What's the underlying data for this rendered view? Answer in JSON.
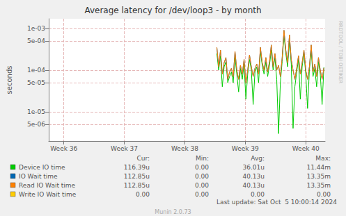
{
  "chart_data": {
    "type": "line",
    "title": "Average latency for /dev/loop3 - by month",
    "ylabel": "seconds",
    "log": "y",
    "grid": true,
    "legend": "bottom",
    "xlim": [
      35.75,
      40.32
    ],
    "xticks": [
      {
        "value": 36,
        "label": "Week 36"
      },
      {
        "value": 37,
        "label": "Week 37"
      },
      {
        "value": 38,
        "label": "Week 38"
      },
      {
        "value": 39,
        "label": "Week 39"
      },
      {
        "value": 40,
        "label": "Week 40"
      }
    ],
    "ylim": [
      2e-06,
      0.0017
    ],
    "yticks": [
      {
        "value": 0.001,
        "label": "1e-03"
      },
      {
        "value": 0.0005,
        "label": "5e-04"
      },
      {
        "value": 0.0001,
        "label": "1e-04"
      },
      {
        "value": 5e-05,
        "label": "5e-05"
      },
      {
        "value": 1e-05,
        "label": "1e-05"
      },
      {
        "value": 5e-06,
        "label": "5e-06"
      }
    ],
    "x": [
      38.53,
      38.56,
      38.59,
      38.62,
      38.65,
      38.68,
      38.71,
      38.74,
      38.77,
      38.8,
      38.83,
      38.86,
      38.89,
      38.92,
      38.95,
      38.98,
      39.01,
      39.04,
      39.07,
      39.1,
      39.13,
      39.16,
      39.19,
      39.22,
      39.25,
      39.28,
      39.31,
      39.34,
      39.37,
      39.4,
      39.43,
      39.46,
      39.49,
      39.52,
      39.55,
      39.58,
      39.61,
      39.64,
      39.67,
      39.7,
      39.73,
      39.76,
      39.79,
      39.82,
      39.85,
      39.88,
      39.91,
      39.94,
      39.97,
      40.0,
      40.03,
      40.06,
      40.09,
      40.12,
      40.15,
      40.18,
      40.21,
      40.24,
      40.27,
      40.3
    ],
    "stat_labels": [
      "Cur:",
      "Min:",
      "Avg:",
      "Max:"
    ],
    "series": [
      {
        "name": "Device IO time",
        "color": "#00cc00",
        "stats": [
          "116.39u",
          "0.00",
          "36.01u",
          "11.44m"
        ],
        "values": [
          0.00025,
          0.0001,
          0.00022,
          4e-05,
          0.00012,
          0.00016,
          5e-05,
          7e-05,
          9e-05,
          5e-05,
          0.0002,
          8e-05,
          3e-05,
          0.00011,
          6e-05,
          0.00014,
          2e-05,
          8e-05,
          0.00018,
          0.0001,
          1.5e-05,
          9e-05,
          0.00012,
          5e-05,
          0.00028,
          0.00013,
          8e-05,
          0.00016,
          7e-05,
          0.00013,
          0.0003,
          0.0001,
          0.0002,
          6e-05,
          3e-06,
          5e-05,
          0.00016,
          0.0007,
          0.00025,
          0.00012,
          0.0005,
          0.00014,
          4e-06,
          4e-05,
          9e-05,
          0.00018,
          2e-05,
          0.00012,
          0.00025,
          8e-05,
          1.2e-05,
          0.0001,
          0.0003,
          7e-05,
          0.00011,
          4e-05,
          0.00016,
          8e-05,
          1.5e-05,
          0.00011639
        ]
      },
      {
        "name": "IO Wait time",
        "color": "#0066b3",
        "stats": [
          "112.85u",
          "0.00",
          "40.13u",
          "13.35m"
        ],
        "values": [
          0.00035,
          0.00012,
          0.0003,
          8e-05,
          0.00015,
          0.0002,
          6e-05,
          9e-05,
          0.00011,
          7e-05,
          0.00028,
          0.0001,
          6e-05,
          0.00013,
          8e-05,
          0.00018,
          5e-05,
          0.0001,
          0.00023,
          0.00012,
          7e-05,
          0.00011,
          0.00014,
          8e-05,
          0.00035,
          0.00015,
          0.0001,
          0.0002,
          9e-05,
          0.00016,
          0.0004,
          0.00012,
          0.00025,
          0.0001,
          0.00013,
          7e-05,
          0.0002,
          0.0009,
          0.0003,
          0.00015,
          0.0007,
          0.00018,
          0.0001,
          6e-05,
          0.00011,
          0.00022,
          8e-05,
          0.00015,
          0.0003,
          0.0001,
          6e-05,
          0.00012,
          0.0004,
          9e-05,
          0.00014,
          7e-05,
          0.0002,
          0.0001,
          6e-05,
          0.00011285
        ]
      },
      {
        "name": "Read IO Wait time",
        "color": "#ff8000",
        "stats": [
          "112.85u",
          "0.00",
          "40.13u",
          "13.35m"
        ],
        "values": [
          0.00035,
          0.00012,
          0.0003,
          8e-05,
          0.00015,
          0.0002,
          6e-05,
          9e-05,
          0.00011,
          7e-05,
          0.00028,
          0.0001,
          6e-05,
          0.00013,
          8e-05,
          0.00018,
          5e-05,
          0.0001,
          0.00023,
          0.00012,
          7e-05,
          0.00011,
          0.00014,
          8e-05,
          0.00035,
          0.00015,
          0.0001,
          0.0002,
          9e-05,
          0.00016,
          0.0004,
          0.00012,
          0.00025,
          0.0001,
          0.00013,
          7e-05,
          0.0002,
          0.0009,
          0.0003,
          0.00015,
          0.0007,
          0.00018,
          0.0001,
          6e-05,
          0.00011,
          0.00022,
          8e-05,
          0.00015,
          0.0003,
          0.0001,
          6e-05,
          0.00012,
          0.0004,
          9e-05,
          0.00014,
          7e-05,
          0.0002,
          0.0001,
          6e-05,
          0.00011285
        ]
      },
      {
        "name": "Write IO Wait time",
        "color": "#ffcc00",
        "stats": [
          "0.00",
          "0.00",
          "0.00",
          "0.00"
        ],
        "values": [
          null,
          null,
          null,
          null,
          null,
          null,
          null,
          null,
          null,
          null,
          null,
          null,
          null,
          null,
          null,
          null,
          null,
          null,
          null,
          null,
          null,
          null,
          null,
          null,
          null,
          null,
          null,
          null,
          null,
          null,
          null,
          null,
          null,
          null,
          null,
          null,
          null,
          null,
          null,
          null,
          null,
          null,
          null,
          null,
          null,
          null,
          null,
          null,
          null,
          null,
          null,
          null,
          null,
          null,
          null,
          null,
          null,
          null,
          null,
          null
        ]
      }
    ],
    "side_text": "RRDTOOL / TOBI OETIKER",
    "last_update": "Last update: Sat Oct  5 10:00:14 2024",
    "footer": "Munin 2.0.73"
  }
}
